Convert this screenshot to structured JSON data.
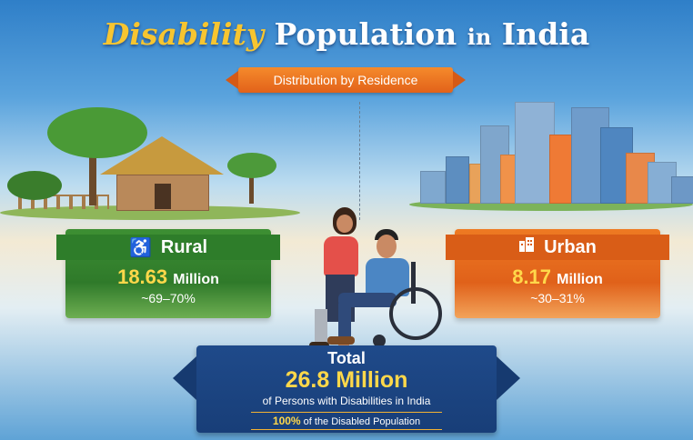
{
  "title": {
    "part1": "Disability",
    "part2": "Population",
    "part3": "in",
    "part4": "India"
  },
  "subtitle": "Distribution by Residence",
  "rural": {
    "label": "Rural",
    "icon": "wheelchair-icon",
    "value": "18.63",
    "unit": "Million",
    "share": "~69–70%"
  },
  "urban": {
    "label": "Urban",
    "icon": "building-icon",
    "value": "8.17",
    "unit": "Million",
    "share": "~30–31%"
  },
  "total": {
    "label": "Total",
    "value": "26.8 Million",
    "description": "of Persons with Disabilities in India",
    "share_percent": "100%",
    "share_text": "of the Disabled Population"
  },
  "colors": {
    "rural_green": "#3d8f33",
    "urban_orange": "#e0611a",
    "total_blue": "#1f4a8a",
    "highlight_yellow": "#ffd84a"
  }
}
